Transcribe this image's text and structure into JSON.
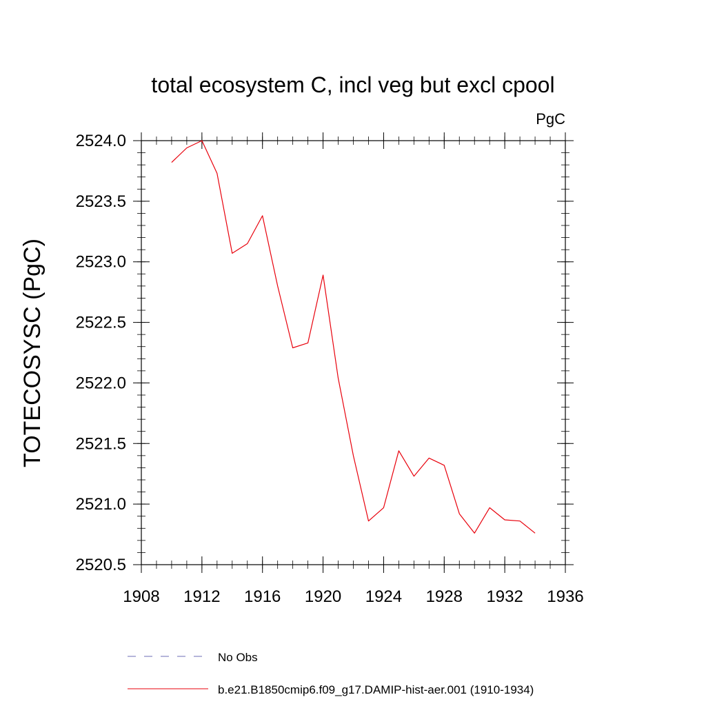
{
  "chart_data": {
    "type": "line",
    "title": "total ecosystem C, incl veg but excl cpool",
    "units_label": "PgC",
    "ylabel": "TOTECOSYSC  (PgC)",
    "xlabel": "",
    "xlim": [
      1908,
      1936
    ],
    "ylim": [
      2520.5,
      2524.0
    ],
    "x_ticks": [
      1908,
      1912,
      1916,
      1920,
      1924,
      1928,
      1932,
      1936
    ],
    "x_tick_labels": [
      "1908",
      "1912",
      "1916",
      "1920",
      "1924",
      "1928",
      "1932",
      "1936"
    ],
    "y_ticks": [
      2520.5,
      2521.0,
      2521.5,
      2522.0,
      2522.5,
      2523.0,
      2523.5,
      2524.0
    ],
    "y_tick_labels": [
      "2520.5",
      "2521.0",
      "2521.5",
      "2522.0",
      "2522.5",
      "2523.0",
      "2523.5",
      "2524.0"
    ],
    "grid": false,
    "legend_position": "bottom",
    "series": [
      {
        "name": "b.e21.B1850cmip6.f09_g17.DAMIP-hist-aer.001 (1910-1934)",
        "color": "#e8000b",
        "x": [
          1910,
          1911,
          1912,
          1913,
          1914,
          1915,
          1916,
          1917,
          1918,
          1919,
          1920,
          1921,
          1922,
          1923,
          1924,
          1925,
          1926,
          1927,
          1928,
          1929,
          1930,
          1931,
          1932,
          1933,
          1934
        ],
        "y": [
          2523.82,
          2523.94,
          2524.0,
          2523.73,
          2523.07,
          2523.15,
          2523.38,
          2522.8,
          2522.29,
          2522.33,
          2522.89,
          2522.04,
          2521.4,
          2520.86,
          2520.97,
          2521.44,
          2521.23,
          2521.38,
          2521.32,
          2520.92,
          2520.76,
          2520.97,
          2520.87,
          2520.86,
          2520.76
        ]
      }
    ],
    "legend": [
      {
        "label": "No Obs",
        "style": "dashed",
        "color": "#6b6bb5"
      },
      {
        "label": "b.e21.B1850cmip6.f09_g17.DAMIP-hist-aer.001 (1910-1934)",
        "style": "solid",
        "color": "#e8000b"
      }
    ]
  }
}
